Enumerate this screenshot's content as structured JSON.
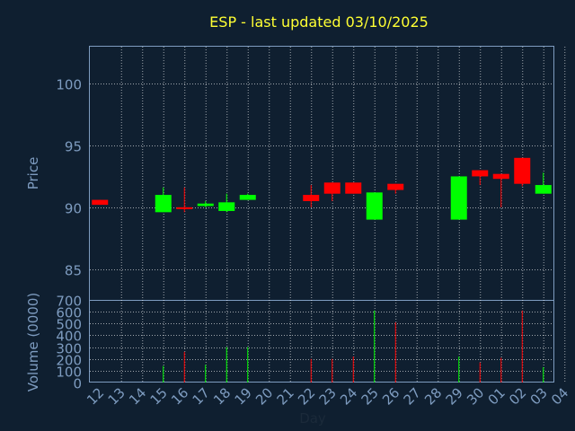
{
  "chart_data": {
    "type": "candlestick",
    "title": "ESP - last updated 03/10/2025",
    "ylabel_price": "Price",
    "ylabel_volume": "Volume (0000)",
    "xlabel": "Day",
    "price_ylim": [
      82.5,
      103
    ],
    "price_ticks": [
      "85",
      "90",
      "95",
      "100"
    ],
    "volume_ylim": [
      0,
      700
    ],
    "volume_ticks": [
      "0",
      "100",
      "200",
      "300",
      "400",
      "500",
      "600",
      "700"
    ],
    "x_ticks": [
      "12",
      "13",
      "14",
      "15",
      "16",
      "17",
      "18",
      "19",
      "20",
      "21",
      "22",
      "23",
      "24",
      "25",
      "26",
      "27",
      "28",
      "29",
      "30",
      "01",
      "02",
      "03",
      "04"
    ],
    "grid": true,
    "colors": {
      "up": "#00ff00",
      "down": "#ff0000",
      "grid": "#ffffff",
      "axis": "#7e9cc0",
      "background": "#0f1f30",
      "title": "#ffff33"
    },
    "candles": [
      {
        "day": "12",
        "open": 90.6,
        "close": 90.2,
        "high": 90.6,
        "low": 90.2,
        "volume": 0
      },
      {
        "day": "15",
        "open": 89.6,
        "close": 91.0,
        "high": 91.6,
        "low": 89.6,
        "volume": 140
      },
      {
        "day": "16",
        "open": 90.0,
        "close": 89.9,
        "high": 91.6,
        "low": 89.6,
        "volume": 260
      },
      {
        "day": "17",
        "open": 90.1,
        "close": 90.3,
        "high": 90.5,
        "low": 90.0,
        "volume": 150
      },
      {
        "day": "18",
        "open": 89.7,
        "close": 90.4,
        "high": 91.1,
        "low": 89.6,
        "volume": 300
      },
      {
        "day": "19",
        "open": 90.6,
        "close": 91.0,
        "high": 91.1,
        "low": 90.6,
        "volume": 300
      },
      {
        "day": "22",
        "open": 91.0,
        "close": 90.5,
        "high": 91.8,
        "low": 90.0,
        "volume": 200
      },
      {
        "day": "23",
        "open": 92.0,
        "close": 91.1,
        "high": 92.0,
        "low": 90.5,
        "volume": 200
      },
      {
        "day": "24",
        "open": 92.0,
        "close": 91.1,
        "high": 92.0,
        "low": 91.1,
        "volume": 220
      },
      {
        "day": "25",
        "open": 89.0,
        "close": 91.2,
        "high": 91.2,
        "low": 89.0,
        "volume": 610
      },
      {
        "day": "26",
        "open": 91.9,
        "close": 91.4,
        "high": 91.9,
        "low": 91.1,
        "volume": 510
      },
      {
        "day": "29",
        "open": 89.0,
        "close": 92.5,
        "high": 92.5,
        "low": 89.0,
        "volume": 220
      },
      {
        "day": "30",
        "open": 93.0,
        "close": 92.5,
        "high": 93.0,
        "low": 91.8,
        "volume": 170
      },
      {
        "day": "01",
        "open": 92.7,
        "close": 92.3,
        "high": 92.7,
        "low": 90.0,
        "volume": 210
      },
      {
        "day": "02",
        "open": 94.0,
        "close": 91.9,
        "high": 94.0,
        "low": 91.7,
        "volume": 610
      },
      {
        "day": "03",
        "open": 91.1,
        "close": 91.8,
        "high": 92.8,
        "low": 91.1,
        "volume": 130
      }
    ]
  }
}
